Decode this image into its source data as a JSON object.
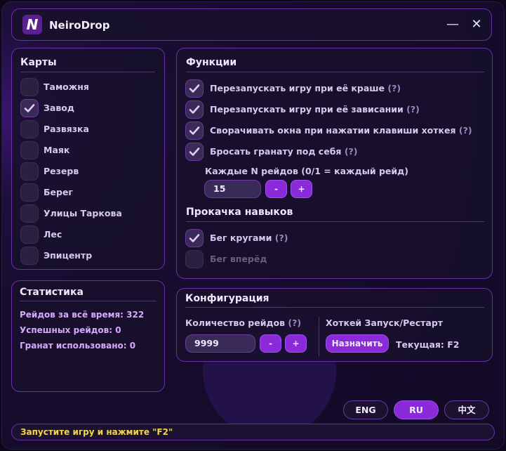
{
  "app": {
    "title": "NeiroDrop",
    "logo_letter": "N",
    "minimize_icon": "minimize-icon",
    "close_icon": "close-icon"
  },
  "maps": {
    "title": "Карты",
    "items": [
      {
        "label": "Таможня",
        "checked": false
      },
      {
        "label": "Завод",
        "checked": true
      },
      {
        "label": "Развязка",
        "checked": false
      },
      {
        "label": "Маяк",
        "checked": false
      },
      {
        "label": "Резерв",
        "checked": false
      },
      {
        "label": "Берег",
        "checked": false
      },
      {
        "label": "Улицы Таркова",
        "checked": false
      },
      {
        "label": "Лес",
        "checked": false
      },
      {
        "label": "Эпицентр",
        "checked": false
      }
    ]
  },
  "functions": {
    "title": "Функции",
    "items": [
      {
        "label": "Перезапускать игру при её краше",
        "help": "(?)",
        "checked": true
      },
      {
        "label": "Перезапускать игру при её зависании",
        "help": "(?)",
        "checked": true
      },
      {
        "label": "Сворачивать окна при нажатии клавиши хоткея",
        "help": "(?)",
        "checked": true
      },
      {
        "label": "Бросать гранату под себя",
        "help": "(?)",
        "checked": true
      }
    ],
    "every_n_label": "Каждые N рейдов (0/1 = каждый рейд)",
    "every_n_value": "15",
    "minus": "-",
    "plus": "+"
  },
  "skills": {
    "title": "Прокачка навыков",
    "items": [
      {
        "label": "Бег кругами",
        "help": "(?)",
        "checked": true,
        "enabled": true
      },
      {
        "label": "Бег вперёд",
        "help": "",
        "checked": false,
        "enabled": false
      }
    ]
  },
  "stats": {
    "title": "Статистика",
    "lines": [
      "Рейдов за всё время: 322",
      "Успешных рейдов: 0",
      "Гранат использовано: 0"
    ]
  },
  "config": {
    "title": "Конфигурация",
    "raids_label": "Количество рейдов",
    "raids_help": "(?)",
    "raids_value": "9999",
    "minus": "-",
    "plus": "+",
    "hotkey_label": "Хоткей Запуск/Рестарт",
    "assign_button": "Назначить",
    "current": "Текущая: F2"
  },
  "languages": [
    {
      "label": "ENG",
      "active": false
    },
    {
      "label": "RU",
      "active": true
    },
    {
      "label": "中文",
      "active": false
    }
  ],
  "status": "Запустите игру и нажмите \"F2\"",
  "colors": {
    "accent": "#8a2ad8",
    "status_text": "#f5d547",
    "stats_text": "#d8a8ff"
  }
}
